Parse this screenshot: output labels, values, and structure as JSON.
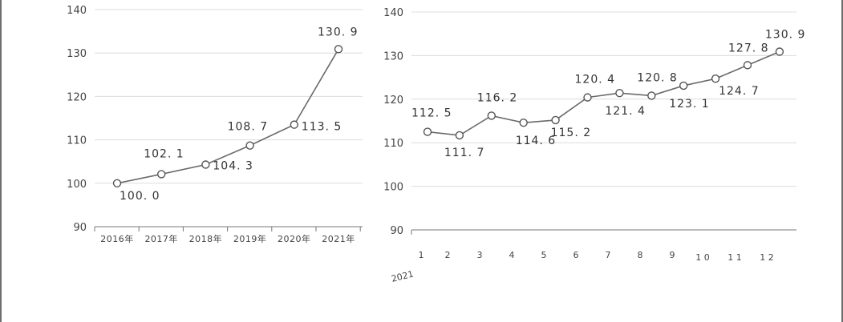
{
  "chart_data": [
    {
      "type": "line",
      "categories": [
        "2016年",
        "2017年",
        "2018年",
        "2019年",
        "2020年",
        "2021年"
      ],
      "values": [
        100.0,
        102.1,
        104.3,
        108.7,
        113.5,
        130.9
      ],
      "value_labels": [
        "100. 0",
        "102. 1",
        "104. 3",
        "108. 7",
        "113. 5",
        "130. 9"
      ],
      "yticks": [
        "140",
        "130",
        "120",
        "110",
        "100",
        "90"
      ],
      "ylim": [
        90,
        140
      ],
      "grid": true,
      "title": "",
      "xlabel": "",
      "ylabel": ""
    },
    {
      "type": "line",
      "categories": [
        "1",
        "2",
        "3",
        "4",
        "5",
        "6",
        "7",
        "8",
        "9",
        "10",
        "11",
        "12"
      ],
      "category_labels": [
        "1",
        "2",
        "3",
        "4",
        "5",
        "6",
        "7",
        "8",
        "9",
        "1 0",
        "1 1",
        "1 2"
      ],
      "year_label": "2021",
      "values": [
        112.5,
        111.7,
        116.2,
        114.6,
        115.2,
        120.4,
        121.4,
        120.8,
        123.1,
        124.7,
        127.8,
        130.9
      ],
      "value_labels": [
        "112. 5",
        "111. 7",
        "116. 2",
        "114. 6",
        "115. 2",
        "120. 4",
        "121. 4",
        "120. 8",
        "123. 1",
        "124. 7",
        "127. 8",
        "130. 9"
      ],
      "yticks": [
        "140",
        "130",
        "120",
        "110",
        "100",
        "90"
      ],
      "ylim": [
        90,
        140
      ],
      "grid": true,
      "title": "",
      "xlabel": "",
      "ylabel": ""
    }
  ]
}
